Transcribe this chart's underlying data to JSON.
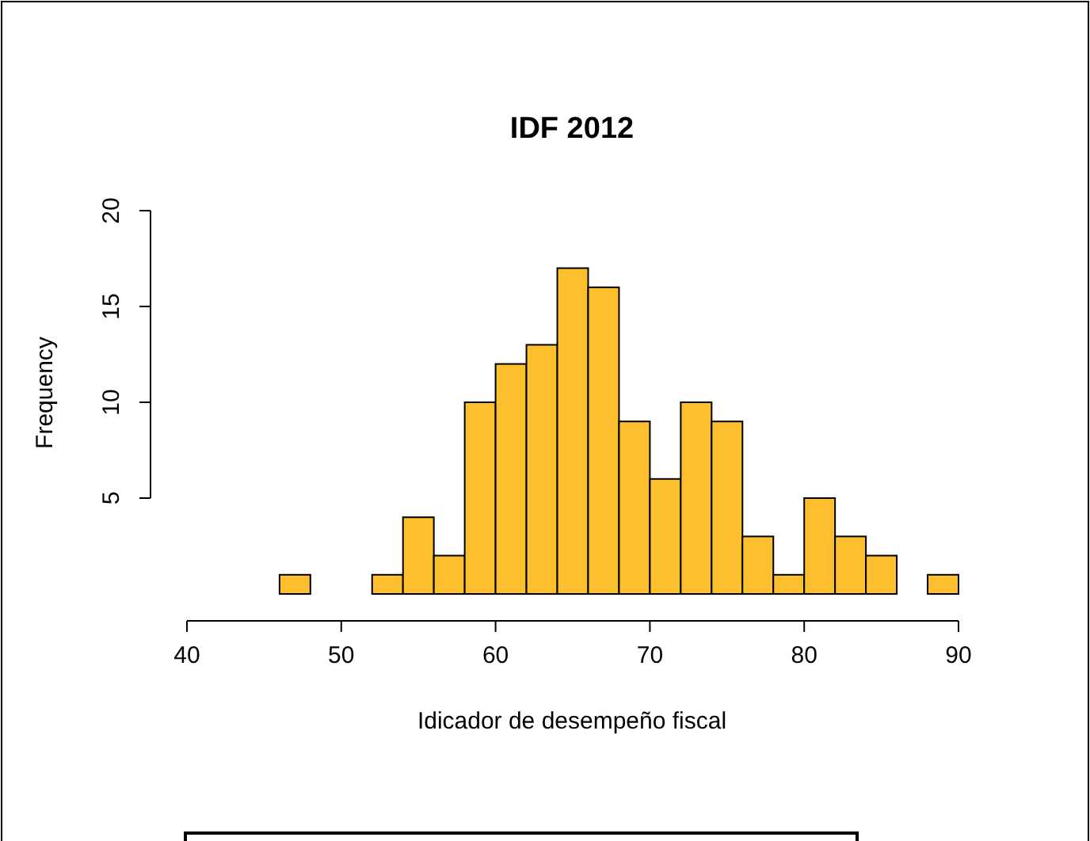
{
  "chart_data": {
    "type": "histogram",
    "title": "IDF 2012",
    "xlabel": "Idicador de desempeño fiscal",
    "ylabel": "Frequency",
    "bins": [
      40,
      42,
      44,
      46,
      48,
      50,
      52,
      54,
      56,
      58,
      60,
      62,
      64,
      66,
      68,
      70,
      72,
      74,
      76,
      78,
      80,
      82,
      84,
      86,
      88,
      90
    ],
    "values": [
      0,
      0,
      0,
      1,
      0,
      0,
      1,
      4,
      2,
      10,
      12,
      13,
      17,
      16,
      9,
      6,
      10,
      9,
      3,
      1,
      5,
      3,
      2,
      0,
      1
    ],
    "color": "#fdbf2d",
    "xlim": [
      40,
      90
    ],
    "xticks": [
      40,
      50,
      60,
      70,
      80,
      90
    ],
    "ylim": [
      0,
      20
    ],
    "yticks": [
      5,
      10,
      15,
      20
    ],
    "grid": false,
    "legend": false
  }
}
